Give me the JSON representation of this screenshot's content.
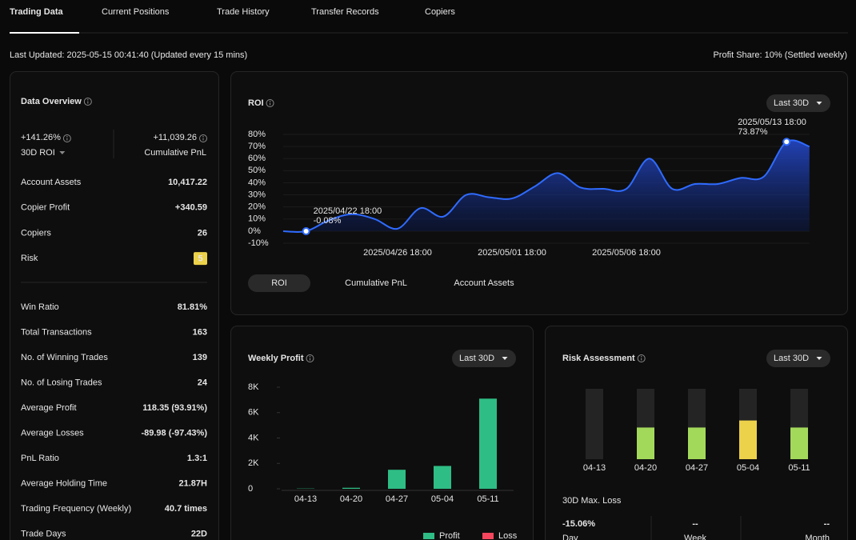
{
  "tabs": [
    "Trading Data",
    "Current Positions",
    "Trade History",
    "Transfer Records",
    "Copiers"
  ],
  "last_updated": "Last Updated: 2025-05-15 00:41:40 (Updated every 15 mins)",
  "profit_share": "Profit Share: 10% (Settled weekly)",
  "overview": {
    "title": "Data Overview",
    "roi": "+141.26%",
    "roi_label": "30D ROI",
    "pnl": "+11,039.26",
    "pnl_label": "Cumulative PnL",
    "rows_top": [
      [
        "Account Assets",
        "10,417.22"
      ],
      [
        "Copier Profit",
        "+340.59"
      ],
      [
        "Copiers",
        "26"
      ],
      [
        "Risk",
        "5"
      ]
    ],
    "rows_bottom": [
      [
        "Win Ratio",
        "81.81%"
      ],
      [
        "Total Transactions",
        "163"
      ],
      [
        "No. of Winning Trades",
        "139"
      ],
      [
        "No. of Losing Trades",
        "24"
      ],
      [
        "Average Profit",
        "118.35 (93.91%)"
      ],
      [
        "Average Losses",
        "-89.98 (-97.43%)"
      ],
      [
        "PnL Ratio",
        "1.3:1"
      ],
      [
        "Average Holding Time",
        "21.87H"
      ],
      [
        "Trading Frequency (Weekly)",
        "40.7 times"
      ],
      [
        "Trade Days",
        "22D"
      ]
    ]
  },
  "chart_data": [
    {
      "type": "area",
      "title": "ROI",
      "range": "Last 30D",
      "x": [
        "2025/04/21 18:00",
        "2025/04/22 18:00",
        "2025/04/23 18:00",
        "2025/04/24 18:00",
        "2025/04/25 18:00",
        "2025/04/26 18:00",
        "2025/04/27 18:00",
        "2025/04/28 18:00",
        "2025/04/29 18:00",
        "2025/04/30 18:00",
        "2025/05/01 18:00",
        "2025/05/02 18:00",
        "2025/05/03 18:00",
        "2025/05/04 18:00",
        "2025/05/05 18:00",
        "2025/05/06 18:00",
        "2025/05/07 18:00",
        "2025/05/08 18:00",
        "2025/05/09 18:00",
        "2025/05/10 18:00",
        "2025/05/11 18:00",
        "2025/05/12 18:00",
        "2025/05/13 18:00",
        "2025/05/14 18:00"
      ],
      "values": [
        -0.1,
        -0.08,
        9,
        14,
        10,
        2,
        19,
        12,
        30,
        28,
        27,
        37,
        48,
        36,
        35,
        35,
        60,
        35,
        39,
        39,
        44,
        45,
        73.87,
        70
      ],
      "color": "#2f6bff",
      "ylim": [
        -10,
        80
      ],
      "yticks": [
        {
          "value": 80,
          "label": "80%"
        },
        {
          "value": 70,
          "label": "70%"
        },
        {
          "value": 60,
          "label": "60%"
        },
        {
          "value": 50,
          "label": "50%"
        },
        {
          "value": 40,
          "label": "40%"
        },
        {
          "value": 30,
          "label": "30%"
        },
        {
          "value": 20,
          "label": "20%"
        },
        {
          "value": 10,
          "label": "10%"
        },
        {
          "value": 0,
          "label": "0%"
        },
        {
          "value": -10,
          "label": "-10%"
        }
      ],
      "xticks": [
        "2025/04/26 18:00",
        "2025/05/01 18:00",
        "2025/05/06 18:00"
      ],
      "annotations": [
        {
          "x": "2025/04/22 18:00",
          "label": "-0.08%"
        },
        {
          "x": "2025/05/13 18:00",
          "label": "73.87%"
        }
      ],
      "grid": true,
      "toggles": [
        "ROI",
        "Cumulative PnL",
        "Account Assets"
      ]
    },
    {
      "type": "bar",
      "title": "Weekly Profit",
      "range": "Last 30D",
      "categories": [
        "04-13",
        "04-20",
        "04-27",
        "05-04",
        "05-11"
      ],
      "series": [
        {
          "name": "Profit",
          "color": "#2ebd85",
          "values": [
            20,
            80,
            1500,
            1800,
            7100
          ]
        },
        {
          "name": "Loss",
          "color": "#f6465d",
          "values": [
            0,
            0,
            0,
            0,
            0
          ]
        }
      ],
      "ylim": [
        0,
        8000
      ],
      "yticks": [
        0,
        {
          "value": 2000,
          "label": "2K"
        },
        {
          "value": 4000,
          "label": "4K"
        },
        {
          "value": 6000,
          "label": "6K"
        },
        {
          "value": 8000,
          "label": "8K"
        }
      ]
    },
    {
      "type": "bar",
      "title": "Risk Assessment",
      "range": "Last 30D",
      "categories": [
        "04-13",
        "04-20",
        "04-27",
        "05-04",
        "05-11"
      ],
      "values": [
        0,
        4.5,
        4.5,
        5.5,
        4.5
      ],
      "colors": [
        "#3a3a3a",
        "#a3d95b",
        "#a3d95b",
        "#ecd14a",
        "#a3d95b"
      ],
      "ylim": [
        0,
        10
      ],
      "summary": {
        "title": "30D Max. Loss",
        "items": [
          {
            "value": "-15.06%",
            "label": "Day"
          },
          {
            "value": "--",
            "label": "Week"
          },
          {
            "value": "--",
            "label": "Month"
          }
        ]
      }
    }
  ]
}
